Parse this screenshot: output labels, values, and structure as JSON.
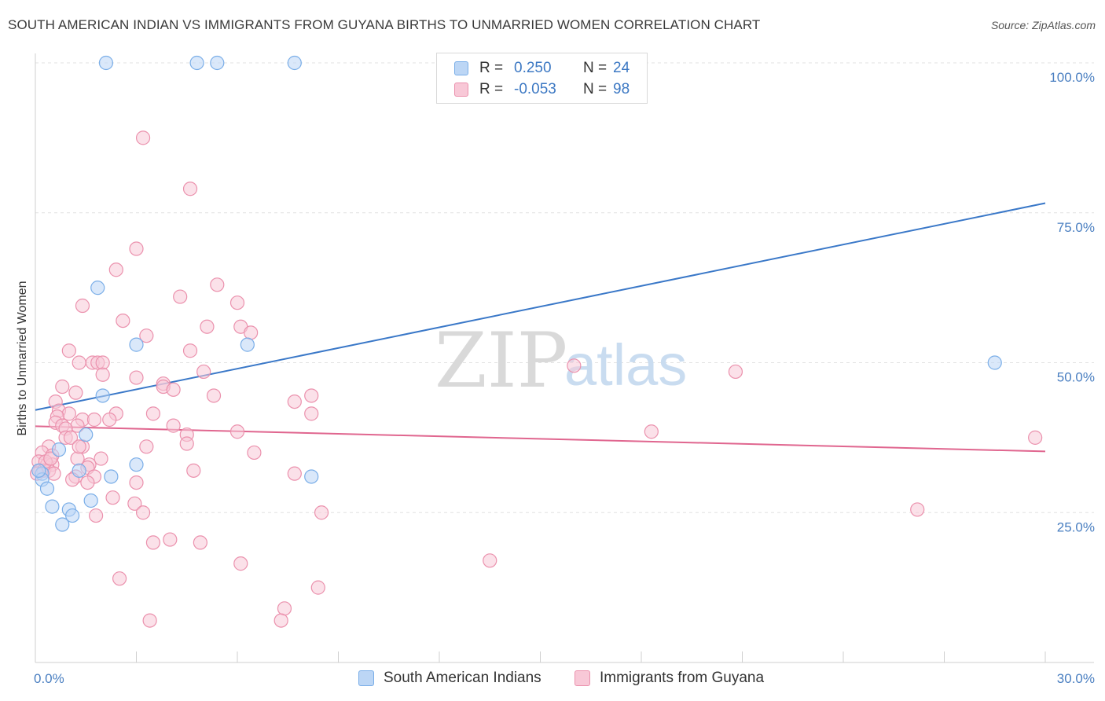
{
  "title": "SOUTH AMERICAN INDIAN VS IMMIGRANTS FROM GUYANA BIRTHS TO UNMARRIED WOMEN CORRELATION CHART",
  "source": "Source: ZipAtlas.com",
  "watermark": {
    "zip": "ZIP",
    "atlas": "atlas"
  },
  "legend": {
    "rows": [
      {
        "r_label": "R =",
        "r_value": "0.250",
        "n_label": "N =",
        "n_value": "24",
        "color": "#7aaee8",
        "fill": "#bcd6f5"
      },
      {
        "r_label": "R =",
        "r_value": "-0.053",
        "n_label": "N =",
        "n_value": "98",
        "color": "#eb91ad",
        "fill": "#f8c8d7"
      }
    ]
  },
  "bottom_legend": {
    "series1": "South American Indians",
    "series2": "Immigrants from Guyana"
  },
  "chart_data": {
    "type": "scatter",
    "title": "SOUTH AMERICAN INDIAN VS IMMIGRANTS FROM GUYANA BIRTHS TO UNMARRIED WOMEN CORRELATION CHART",
    "xlabel": "",
    "ylabel": "Births to Unmarried Women",
    "xlim": [
      0,
      30
    ],
    "ylim": [
      0,
      100
    ],
    "x_tick_labels": [
      "0.0%",
      "30.0%"
    ],
    "y_ticks": [
      25,
      50,
      75,
      100
    ],
    "y_tick_labels": [
      "25.0%",
      "50.0%",
      "75.0%",
      "100.0%"
    ],
    "grid": true,
    "series": [
      {
        "name": "South American Indians",
        "color": "#7aaee8",
        "fill": "#bcd6f5",
        "line_color": "#3a78c8",
        "trend": {
          "x": [
            0,
            30
          ],
          "y": [
            42.1,
            76.6
          ]
        },
        "points": [
          [
            2.1,
            100
          ],
          [
            4.8,
            100
          ],
          [
            5.4,
            100
          ],
          [
            7.7,
            100
          ],
          [
            1.85,
            62.5
          ],
          [
            3.0,
            53.0
          ],
          [
            6.3,
            53.0
          ],
          [
            28.5,
            50.0
          ],
          [
            2.0,
            44.5
          ],
          [
            1.5,
            38.0
          ],
          [
            0.7,
            35.5
          ],
          [
            3.0,
            33.0
          ],
          [
            1.3,
            32.0
          ],
          [
            0.2,
            31.5
          ],
          [
            2.25,
            31.0
          ],
          [
            8.2,
            31.0
          ],
          [
            0.2,
            30.5
          ],
          [
            0.35,
            29.0
          ],
          [
            1.65,
            27.0
          ],
          [
            0.5,
            26.0
          ],
          [
            1.0,
            25.5
          ],
          [
            1.1,
            24.5
          ],
          [
            0.8,
            23.0
          ],
          [
            0.1,
            32.0
          ]
        ]
      },
      {
        "name": "Immigrants from Guyana",
        "color": "#eb91ad",
        "fill": "#f8c8d7",
        "line_color": "#e0668f",
        "trend": {
          "x": [
            0,
            30
          ],
          "y": [
            39.4,
            35.2
          ]
        },
        "points": [
          [
            3.2,
            87.5
          ],
          [
            4.6,
            79.0
          ],
          [
            3.0,
            69.0
          ],
          [
            2.4,
            65.5
          ],
          [
            5.4,
            63.0
          ],
          [
            4.3,
            61.0
          ],
          [
            1.4,
            59.5
          ],
          [
            6.0,
            60.0
          ],
          [
            2.6,
            57.0
          ],
          [
            5.1,
            56.0
          ],
          [
            6.1,
            56.0
          ],
          [
            3.3,
            54.5
          ],
          [
            6.4,
            55.0
          ],
          [
            1.0,
            52.0
          ],
          [
            4.6,
            52.0
          ],
          [
            1.3,
            50.0
          ],
          [
            1.7,
            50.0
          ],
          [
            1.85,
            50.0
          ],
          [
            2.0,
            50.0
          ],
          [
            16.0,
            49.5
          ],
          [
            5.0,
            48.5
          ],
          [
            20.8,
            48.5
          ],
          [
            2.0,
            48.0
          ],
          [
            3.0,
            47.5
          ],
          [
            3.8,
            46.5
          ],
          [
            3.8,
            46.0
          ],
          [
            4.1,
            45.5
          ],
          [
            0.8,
            46.0
          ],
          [
            1.2,
            45.0
          ],
          [
            5.3,
            44.5
          ],
          [
            8.2,
            44.5
          ],
          [
            7.7,
            43.5
          ],
          [
            0.6,
            43.5
          ],
          [
            0.7,
            42.0
          ],
          [
            1.0,
            41.5
          ],
          [
            2.4,
            41.5
          ],
          [
            3.5,
            41.5
          ],
          [
            8.2,
            41.5
          ],
          [
            0.65,
            41.0
          ],
          [
            1.4,
            40.5
          ],
          [
            2.2,
            40.5
          ],
          [
            1.75,
            40.5
          ],
          [
            0.6,
            40.0
          ],
          [
            0.8,
            39.5
          ],
          [
            1.25,
            39.5
          ],
          [
            4.1,
            39.5
          ],
          [
            0.9,
            39.0
          ],
          [
            6.0,
            38.5
          ],
          [
            18.3,
            38.5
          ],
          [
            4.5,
            38.0
          ],
          [
            0.9,
            37.5
          ],
          [
            1.05,
            37.5
          ],
          [
            29.7,
            37.5
          ],
          [
            4.5,
            36.5
          ],
          [
            0.4,
            36.0
          ],
          [
            1.4,
            36.0
          ],
          [
            3.3,
            36.0
          ],
          [
            0.2,
            35.0
          ],
          [
            6.5,
            35.0
          ],
          [
            0.5,
            34.5
          ],
          [
            1.25,
            34.0
          ],
          [
            1.95,
            34.0
          ],
          [
            0.1,
            33.5
          ],
          [
            0.35,
            33.0
          ],
          [
            0.5,
            33.0
          ],
          [
            1.6,
            33.0
          ],
          [
            1.55,
            32.5
          ],
          [
            0.15,
            32.0
          ],
          [
            0.25,
            32.0
          ],
          [
            0.4,
            32.0
          ],
          [
            4.7,
            32.0
          ],
          [
            0.05,
            31.5
          ],
          [
            0.55,
            31.5
          ],
          [
            7.7,
            31.5
          ],
          [
            1.2,
            31.0
          ],
          [
            1.75,
            31.0
          ],
          [
            1.1,
            30.5
          ],
          [
            1.55,
            30.0
          ],
          [
            3.0,
            30.0
          ],
          [
            2.3,
            27.5
          ],
          [
            2.95,
            26.5
          ],
          [
            3.2,
            25.0
          ],
          [
            1.8,
            24.5
          ],
          [
            8.5,
            25.0
          ],
          [
            26.2,
            25.5
          ],
          [
            3.5,
            20.0
          ],
          [
            4.0,
            20.5
          ],
          [
            4.9,
            20.0
          ],
          [
            6.1,
            16.5
          ],
          [
            13.5,
            17.0
          ],
          [
            2.5,
            14.0
          ],
          [
            8.4,
            12.5
          ],
          [
            7.4,
            9.0
          ],
          [
            3.4,
            7.0
          ],
          [
            7.3,
            7.0
          ],
          [
            0.3,
            33.5
          ],
          [
            0.45,
            34.0
          ],
          [
            1.3,
            36.0
          ]
        ]
      }
    ]
  }
}
